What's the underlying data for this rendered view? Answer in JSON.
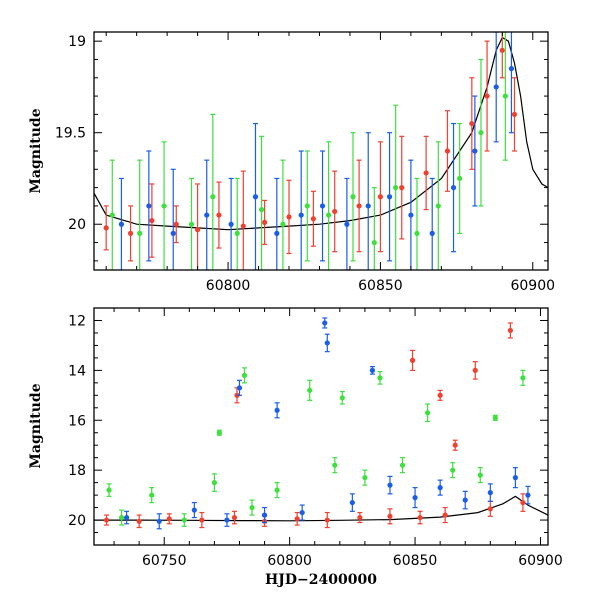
{
  "chart_data": [
    {
      "type": "scatter",
      "panel": "top",
      "xlabel": "",
      "ylabel": "Magnitude",
      "xlim": [
        60756,
        60905
      ],
      "ylim": [
        20.25,
        18.95
      ],
      "y_inverted": true,
      "x_ticks": [
        60800,
        60850,
        60900
      ],
      "x_tick_labels": [
        "60800",
        "60850",
        "60900"
      ],
      "y_ticks": [
        19,
        19.5,
        20
      ],
      "y_tick_labels": [
        "19",
        "19.5",
        "20"
      ],
      "grid": false,
      "colors": {
        "red": "#f04030",
        "green": "#3ee03e",
        "blue": "#1a5ee8",
        "model": "#000000"
      },
      "model_curve": {
        "x": [
          60756,
          60760,
          60770,
          60780,
          60790,
          60800,
          60810,
          60820,
          60830,
          60840,
          60850,
          60860,
          60870,
          60880,
          60885,
          60888,
          60890,
          60892,
          60894,
          60896,
          60898,
          60900,
          60903,
          60905
        ],
        "y": [
          19.83,
          19.95,
          20.0,
          20.01,
          20.02,
          20.03,
          20.02,
          20.01,
          20.0,
          19.98,
          19.95,
          19.88,
          19.75,
          19.5,
          19.25,
          19.05,
          18.98,
          19.0,
          19.12,
          19.3,
          19.55,
          19.7,
          19.78,
          19.8
        ]
      },
      "series": [
        {
          "name": "",
          "color": "red",
          "x": [
            60760,
            60768,
            60775,
            60783,
            60790,
            60797,
            60805,
            60812,
            60820,
            60828,
            60835,
            60843,
            60850,
            60857,
            60865,
            60872,
            60880,
            60885,
            60890,
            60894
          ],
          "y": [
            20.02,
            20.05,
            19.98,
            20.0,
            20.03,
            19.95,
            20.01,
            19.99,
            19.96,
            19.97,
            19.93,
            19.9,
            19.85,
            19.8,
            19.72,
            19.6,
            19.45,
            19.3,
            19.05,
            19.4
          ],
          "err": [
            0.12,
            0.15,
            0.2,
            0.1,
            0.25,
            0.18,
            0.3,
            0.12,
            0.2,
            0.15,
            0.22,
            0.25,
            0.3,
            0.28,
            0.2,
            0.22,
            0.25,
            0.3,
            0.15,
            0.2
          ]
        },
        {
          "name": "",
          "color": "green",
          "x": [
            60762,
            60771,
            60779,
            60788,
            60795,
            60803,
            60811,
            60818,
            60826,
            60833,
            60841,
            60848,
            60855,
            60862,
            60869,
            60876,
            60883,
            60891
          ],
          "y": [
            19.95,
            20.05,
            19.9,
            20.0,
            19.85,
            20.05,
            19.92,
            20.0,
            19.9,
            19.95,
            19.85,
            20.1,
            19.8,
            20.05,
            19.9,
            19.75,
            19.5,
            19.3
          ],
          "err": [
            0.3,
            0.4,
            0.35,
            0.25,
            0.45,
            0.3,
            0.4,
            0.35,
            0.3,
            0.4,
            0.35,
            0.3,
            0.45,
            0.3,
            0.35,
            0.3,
            0.4,
            0.35
          ]
        },
        {
          "name": "",
          "color": "blue",
          "x": [
            60765,
            60774,
            60782,
            60793,
            60801,
            60809,
            60816,
            60824,
            60831,
            60839,
            60846,
            60853,
            60860,
            60867,
            60874,
            60881,
            60888,
            60893
          ],
          "y": [
            20.0,
            19.9,
            20.05,
            19.95,
            20.0,
            19.85,
            20.05,
            19.95,
            19.9,
            20.0,
            19.9,
            19.85,
            19.95,
            20.05,
            19.8,
            19.6,
            19.25,
            19.15
          ],
          "err": [
            0.25,
            0.3,
            0.35,
            0.3,
            0.25,
            0.4,
            0.3,
            0.35,
            0.3,
            0.25,
            0.4,
            0.35,
            0.3,
            0.3,
            0.35,
            0.3,
            0.3,
            0.35
          ]
        }
      ]
    },
    {
      "type": "scatter",
      "panel": "bottom",
      "xlabel": "HJD−2400000",
      "ylabel": "Magnitude",
      "xlim": [
        60722,
        60903
      ],
      "ylim": [
        21.0,
        11.5
      ],
      "y_inverted": true,
      "x_ticks": [
        60750,
        60800,
        60850,
        60900
      ],
      "x_tick_labels": [
        "60750",
        "60800",
        "60850",
        "60900"
      ],
      "y_ticks": [
        12,
        14,
        16,
        18,
        20
      ],
      "y_tick_labels": [
        "12",
        "14",
        "16",
        "18",
        "20"
      ],
      "grid": false,
      "colors": {
        "red": "#f04030",
        "green": "#3ee03e",
        "blue": "#1a5ee8",
        "model": "#000000"
      },
      "model_curve": {
        "x": [
          60722,
          60740,
          60760,
          60780,
          60800,
          60820,
          60840,
          60860,
          60875,
          60885,
          60890,
          60895,
          60903
        ],
        "y": [
          20.0,
          20.0,
          20.01,
          20.02,
          20.03,
          20.01,
          19.98,
          19.88,
          19.7,
          19.35,
          19.05,
          19.4,
          19.8
        ]
      },
      "series": [
        {
          "name": "",
          "color": "red",
          "x": [
            60727,
            60740,
            60752,
            60765,
            60778,
            60779,
            60790,
            60803,
            60815,
            60828,
            60840,
            60849,
            60852,
            60860,
            60862,
            60866,
            60874,
            60880,
            60888,
            60893
          ],
          "y": [
            20.0,
            20.05,
            19.95,
            20.0,
            19.9,
            15.0,
            20.05,
            19.95,
            20.0,
            19.9,
            19.85,
            13.6,
            19.9,
            15.0,
            19.8,
            17.0,
            14.0,
            19.55,
            12.4,
            19.3
          ],
          "err": [
            0.2,
            0.25,
            0.2,
            0.3,
            0.25,
            0.3,
            0.2,
            0.25,
            0.3,
            0.2,
            0.3,
            0.4,
            0.25,
            0.2,
            0.3,
            0.2,
            0.35,
            0.3,
            0.3,
            0.35
          ]
        },
        {
          "name": "",
          "color": "green",
          "x": [
            60728,
            60733,
            60745,
            60758,
            60770,
            60772,
            60782,
            60785,
            60795,
            60808,
            60818,
            60821,
            60830,
            60836,
            60845,
            60855,
            60865,
            60876,
            60882,
            60893
          ],
          "y": [
            18.8,
            19.9,
            19.0,
            20.0,
            18.5,
            16.5,
            14.2,
            19.5,
            18.8,
            14.8,
            17.8,
            15.1,
            18.3,
            14.3,
            17.8,
            15.7,
            18.0,
            18.2,
            15.9,
            14.3
          ],
          "err": [
            0.25,
            0.3,
            0.3,
            0.25,
            0.35,
            0.1,
            0.3,
            0.3,
            0.3,
            0.4,
            0.3,
            0.25,
            0.3,
            0.25,
            0.3,
            0.35,
            0.3,
            0.3,
            0.1,
            0.3
          ]
        },
        {
          "name": "",
          "color": "blue",
          "x": [
            60735,
            60748,
            60762,
            60775,
            60780,
            60790,
            60795,
            60805,
            60814,
            60815,
            60825,
            60833,
            60840,
            60850,
            60860,
            60870,
            60880,
            60890,
            60895
          ],
          "y": [
            19.9,
            20.05,
            19.6,
            20.0,
            14.7,
            19.8,
            15.6,
            19.7,
            12.1,
            12.9,
            19.3,
            14.0,
            18.6,
            19.1,
            18.7,
            19.2,
            18.9,
            18.3,
            19.0
          ],
          "err": [
            0.25,
            0.3,
            0.3,
            0.25,
            0.3,
            0.3,
            0.3,
            0.3,
            0.2,
            0.35,
            0.35,
            0.15,
            0.35,
            0.4,
            0.3,
            0.35,
            0.35,
            0.4,
            0.35
          ]
        }
      ]
    }
  ]
}
